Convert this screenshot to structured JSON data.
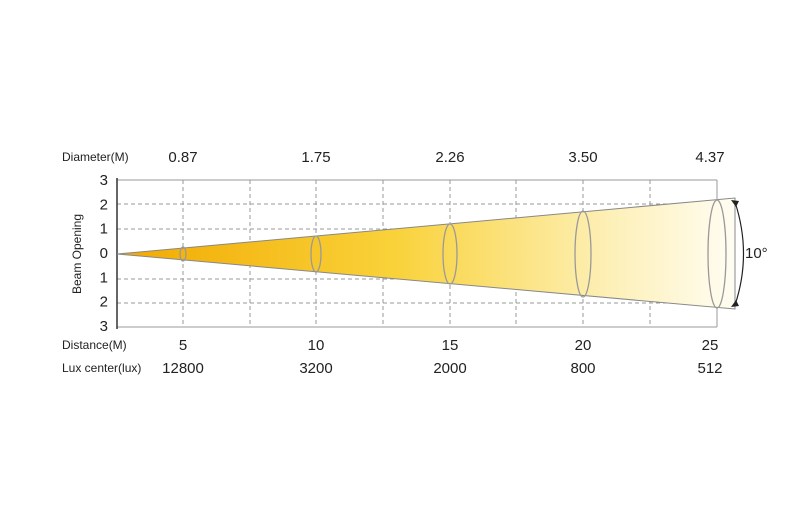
{
  "diameter": {
    "label": "Diameter(M)",
    "values": [
      "0.87",
      "1.75",
      "2.26",
      "3.50",
      "4.37"
    ]
  },
  "distance": {
    "label": "Distance(M)",
    "values": [
      "5",
      "10",
      "15",
      "20",
      "25"
    ]
  },
  "lux": {
    "label": "Lux center(lux)",
    "values": [
      "12800",
      "3200",
      "2000",
      "800",
      "512"
    ]
  },
  "y_axis": {
    "label": "Beam Opening",
    "ticks": [
      "3",
      "2",
      "1",
      "0",
      "1",
      "2",
      "3"
    ]
  },
  "angle": "10°"
}
